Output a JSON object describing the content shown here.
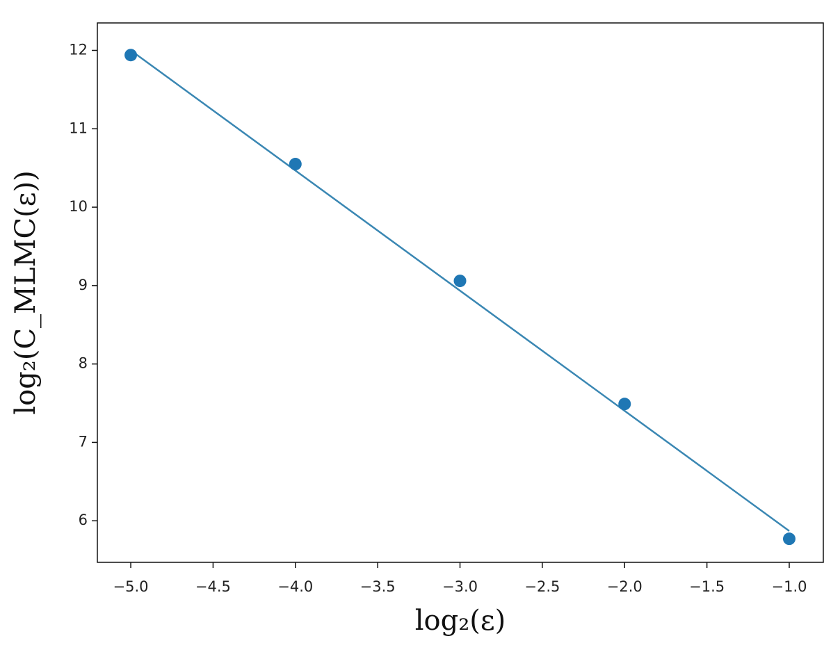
{
  "chart_data": {
    "type": "scatter",
    "x_label": "log₂(ε)",
    "y_label": "log₂(C_MLMC(ε))",
    "xlim": [
      -5.203,
      -0.793
    ],
    "ylim": [
      5.47,
      12.35
    ],
    "xticks": [
      {
        "value": -5.0,
        "label": "−5.0"
      },
      {
        "value": -4.5,
        "label": "−4.5"
      },
      {
        "value": -4.0,
        "label": "−4.0"
      },
      {
        "value": -3.5,
        "label": "−3.5"
      },
      {
        "value": -3.0,
        "label": "−3.0"
      },
      {
        "value": -2.5,
        "label": "−2.5"
      },
      {
        "value": -2.0,
        "label": "−2.0"
      },
      {
        "value": -1.5,
        "label": "−1.5"
      },
      {
        "value": -1.0,
        "label": "−1.0"
      }
    ],
    "yticks": [
      6,
      7,
      8,
      9,
      10,
      11,
      12
    ],
    "series": [
      {
        "kind": "line",
        "color": "#3a87b3",
        "x": [
          -5,
          -1
        ],
        "values": [
          12.0,
          5.87
        ]
      },
      {
        "kind": "scatter",
        "color": "#1f77b4",
        "x": [
          -5,
          -4,
          -3,
          -2,
          -1
        ],
        "values": [
          11.94,
          10.55,
          9.06,
          7.49,
          5.77
        ]
      }
    ]
  }
}
